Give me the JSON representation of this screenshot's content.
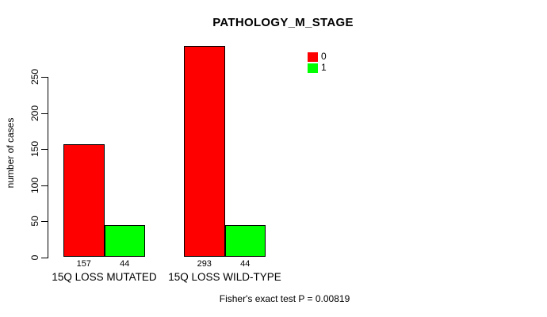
{
  "chart_data": {
    "type": "bar",
    "title": "PATHOLOGY_M_STAGE",
    "ylabel": "number of cases",
    "xlabel": "",
    "categories": [
      "15Q LOSS MUTATED",
      "15Q LOSS WILD-TYPE"
    ],
    "series": [
      {
        "name": "0",
        "color": "#ff0000",
        "values": [
          157,
          293
        ]
      },
      {
        "name": "1",
        "color": "#00ff00",
        "values": [
          44,
          44
        ]
      }
    ],
    "bar_value_labels": [
      [
        "157",
        "44"
      ],
      [
        "293",
        "44"
      ]
    ],
    "yticks": [
      0,
      50,
      100,
      150,
      200,
      250
    ],
    "ylim": [
      0,
      293
    ],
    "grid": false,
    "legend_position": "top-right",
    "legend_entries": [
      {
        "label": "0",
        "color": "#ff0000"
      },
      {
        "label": "1",
        "color": "#00ff00"
      }
    ],
    "annotation": "Fisher's exact test P = 0.00819",
    "axis_color": "#000000",
    "bar_border_color": "#000000"
  }
}
